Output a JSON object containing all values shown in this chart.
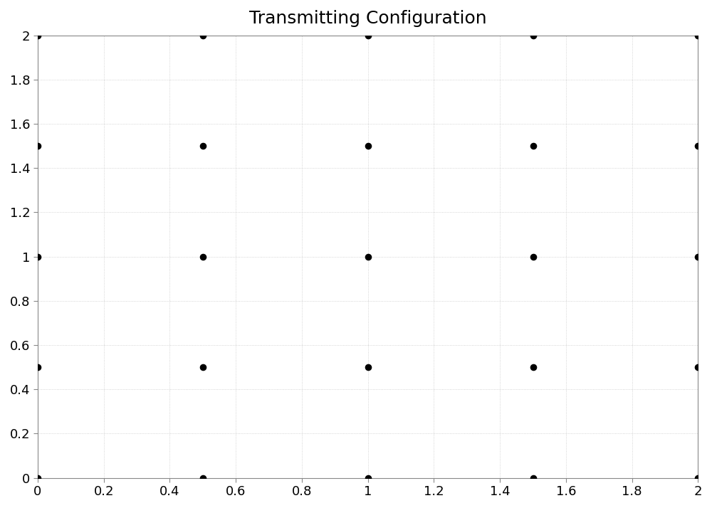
{
  "title": "Transmitting Configuration",
  "title_fontsize": 18,
  "xlim": [
    0,
    2
  ],
  "ylim": [
    0,
    2
  ],
  "xticks": [
    0,
    0.2,
    0.4,
    0.6,
    0.8,
    1.0,
    1.2,
    1.4,
    1.6,
    1.8,
    2.0
  ],
  "yticks": [
    0,
    0.2,
    0.4,
    0.6,
    0.8,
    1.0,
    1.2,
    1.4,
    1.6,
    1.8,
    2.0
  ],
  "points_x": [
    0,
    0.5,
    1.0,
    1.5,
    2.0,
    0,
    0.5,
    1.0,
    1.5,
    2.0,
    0,
    0.5,
    1.0,
    1.5,
    2.0,
    0,
    0.5,
    1.0,
    1.5,
    2.0,
    0,
    0.5,
    1.0,
    1.5,
    2.0
  ],
  "points_y": [
    0,
    0,
    0,
    0,
    0,
    0.5,
    0.5,
    0.5,
    0.5,
    0.5,
    1.0,
    1.0,
    1.0,
    1.0,
    1.0,
    1.5,
    1.5,
    1.5,
    1.5,
    1.5,
    2.0,
    2.0,
    2.0,
    2.0,
    2.0
  ],
  "dot_color": "#000000",
  "dot_size": 35,
  "grid_color": "#c8c8c8",
  "background_color": "#ffffff",
  "spine_color": "#888888",
  "tick_fontsize": 13,
  "font_family": "sans-serif"
}
